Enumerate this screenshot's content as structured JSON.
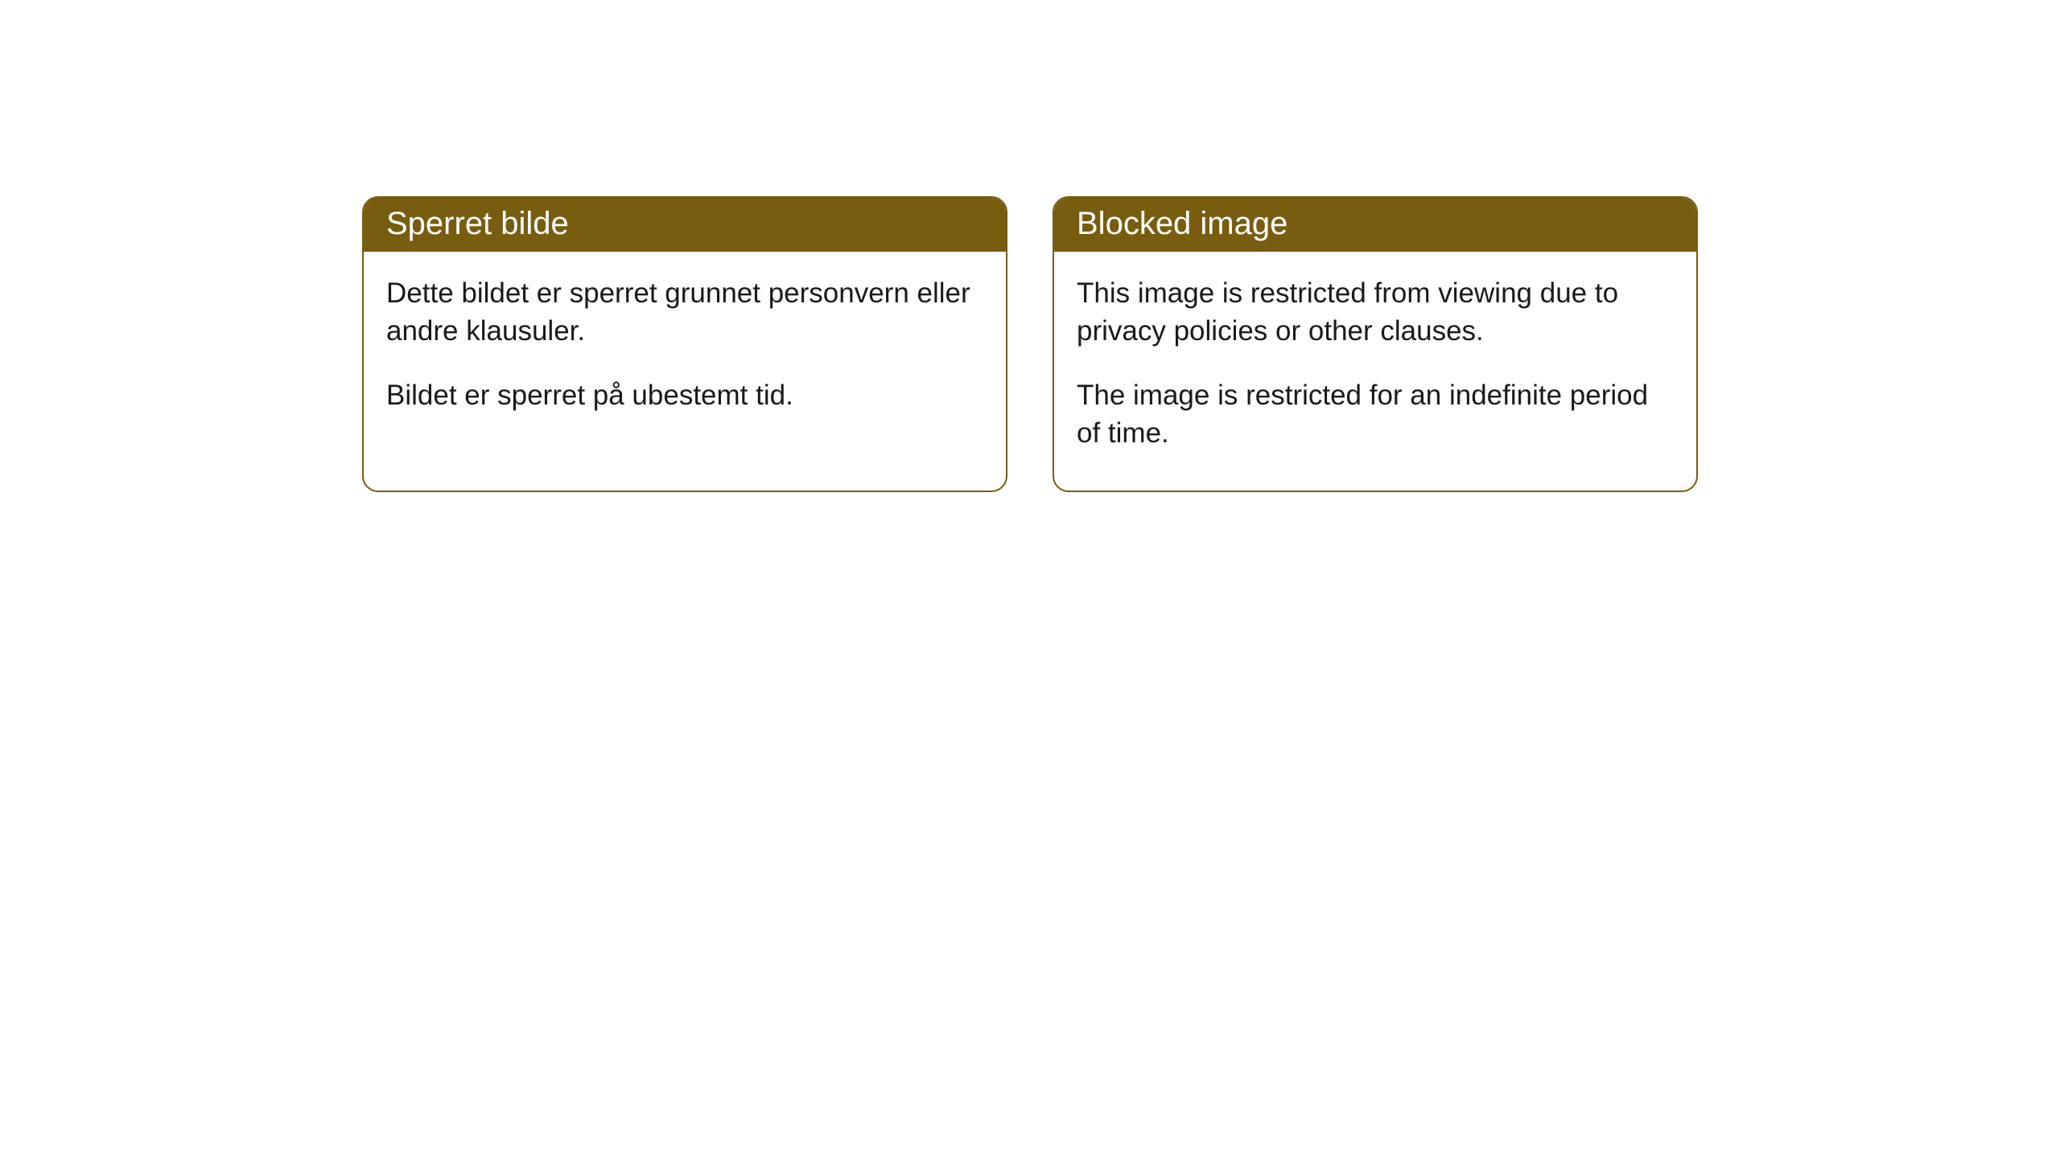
{
  "cards": [
    {
      "title": "Sperret bilde",
      "paragraph1": "Dette bildet er sperret grunnet personvern eller andre klausuler.",
      "paragraph2": "Bildet er sperret på ubestemt tid."
    },
    {
      "title": "Blocked image",
      "paragraph1": "This image is restricted from viewing due to privacy policies or other clauses.",
      "paragraph2": "The image is restricted for an indefinite period of time."
    }
  ],
  "colors": {
    "header_bg": "#785c10",
    "header_text": "#ffffff",
    "border": "#785c10",
    "body_bg": "#ffffff",
    "body_text": "#1a1a1a"
  }
}
